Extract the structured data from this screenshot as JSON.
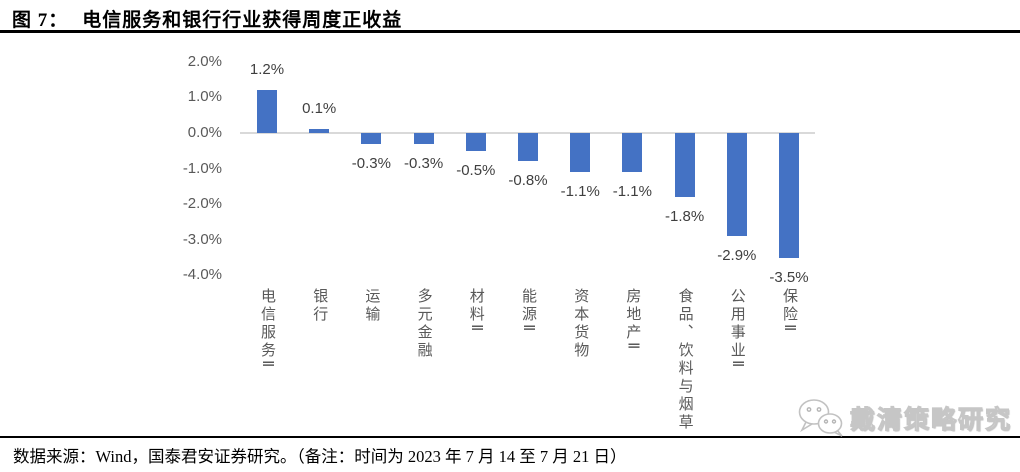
{
  "figure": {
    "label": "图 7：",
    "title": "电信服务和银行行业获得周度正收益"
  },
  "chart_data": {
    "type": "bar",
    "title": "电信服务和银行行业获得周度正收益",
    "categories": [
      "电信服务Ⅱ",
      "银行",
      "运输",
      "多元金融",
      "材料Ⅱ",
      "能源Ⅱ",
      "资本货物",
      "房地产Ⅱ",
      "食品、饮料与烟草",
      "公用事业Ⅱ",
      "保险Ⅱ"
    ],
    "values": [
      1.2,
      0.1,
      -0.3,
      -0.3,
      -0.5,
      -0.8,
      -1.1,
      -1.1,
      -1.8,
      -2.9,
      -3.5
    ],
    "value_labels": [
      "1.2%",
      "0.1%",
      "-0.3%",
      "-0.3%",
      "-0.5%",
      "-0.8%",
      "-1.1%",
      "-1.1%",
      "-1.8%",
      "-2.9%",
      "-3.5%"
    ],
    "unit": "%",
    "xlabel": "",
    "ylabel": "",
    "ylim": [
      -4.0,
      2.0
    ],
    "yticks": [
      {
        "v": 2.0,
        "label": "2.0%"
      },
      {
        "v": 1.0,
        "label": "1.0%"
      },
      {
        "v": 0.0,
        "label": "0.0%"
      },
      {
        "v": -1.0,
        "label": "-1.0%"
      },
      {
        "v": -2.0,
        "label": "-2.0%"
      },
      {
        "v": -3.0,
        "label": "-3.0%"
      },
      {
        "v": -4.0,
        "label": "-4.0%"
      }
    ],
    "grid": false,
    "legend": null,
    "colors": {
      "bar": "#4472C4",
      "axis_line": "#d9d9d9",
      "tick_label": "#595959",
      "category_label": "#595959",
      "value_label": "#3f3f3f"
    }
  },
  "footer": {
    "source_note": "数据来源：Wind，国泰君安证券研究。（备注：时间为 2023 年 7 月 14 至 7 月 21 日）"
  },
  "watermark": {
    "icon": "wechat-icon",
    "text": "戴清策略研究"
  }
}
